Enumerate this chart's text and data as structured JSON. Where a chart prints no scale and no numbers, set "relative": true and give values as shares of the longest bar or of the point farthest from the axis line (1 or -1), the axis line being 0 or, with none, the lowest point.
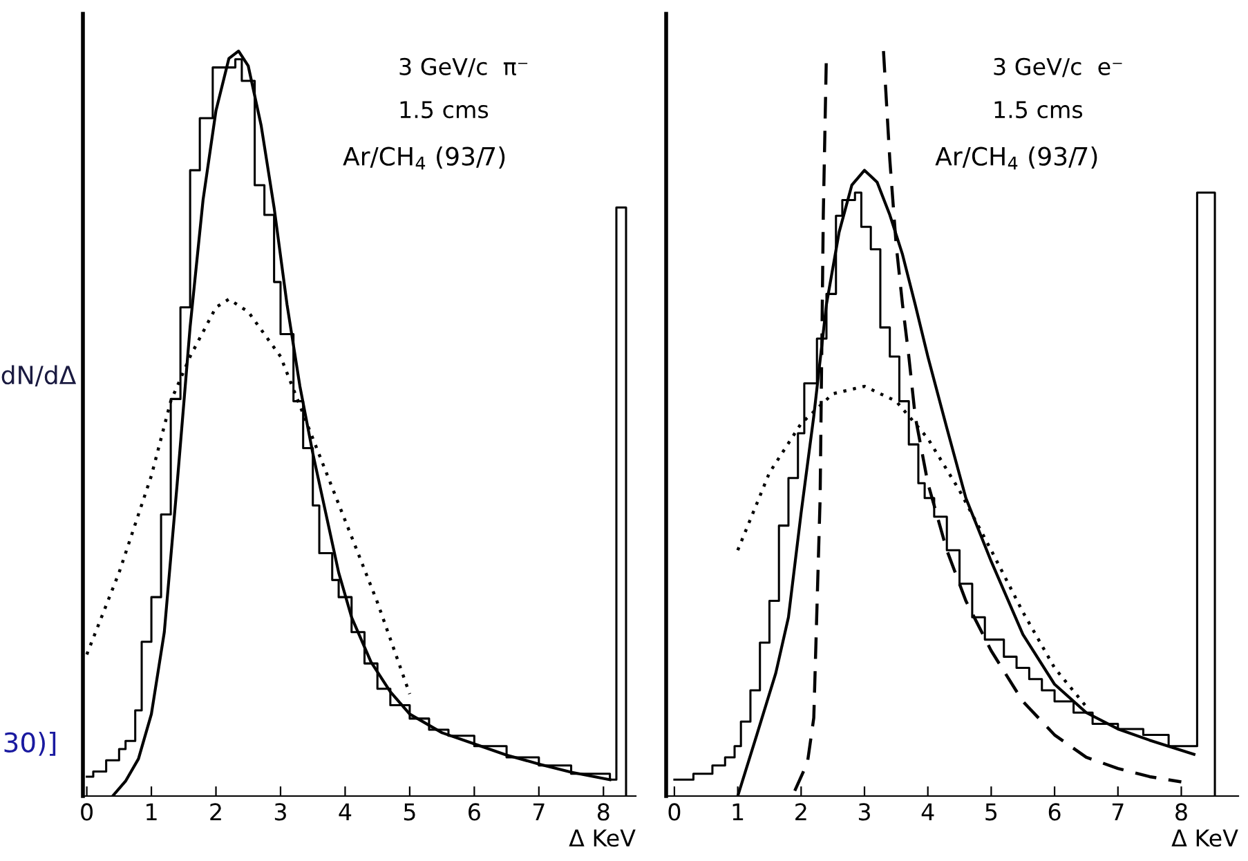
{
  "chart_data": [
    {
      "type": "line",
      "relative": true,
      "xlabel": "Δ KeV",
      "ylabel": "dN/dΔ",
      "xlim": [
        -0.06,
        8.5
      ],
      "xticks": [
        0,
        1,
        2,
        3,
        4,
        5,
        6,
        7,
        8
      ],
      "grid": false,
      "legend": false,
      "annotations": [
        "3 GeV/c  π⁻",
        "1.5 cms",
        "Ar/CH$_{4}$ (93/7)",
        "30)]"
      ],
      "series": [
        {
          "type": "step",
          "color": "#000000",
          "line_style": "solid",
          "x": [
            0,
            0.1,
            0.3,
            0.5,
            0.6,
            0.75,
            0.85,
            1.0,
            1.15,
            1.3,
            1.45,
            1.6,
            1.75,
            1.95,
            2.3,
            2.4,
            2.6,
            2.75,
            2.9,
            3.0,
            3.2,
            3.35,
            3.5,
            3.6,
            3.8,
            3.9,
            4.1,
            4.3,
            4.5,
            4.7,
            5.0,
            5.3,
            5.6,
            6.0,
            6.5,
            7.0,
            7.5,
            8.1,
            8.2,
            8.35
          ],
          "values": [
            0.026,
            0.033,
            0.048,
            0.063,
            0.074,
            0.115,
            0.207,
            0.267,
            0.378,
            0.533,
            0.656,
            0.84,
            0.91,
            0.978,
            0.989,
            0.96,
            0.82,
            0.78,
            0.69,
            0.62,
            0.53,
            0.467,
            0.39,
            0.326,
            0.29,
            0.267,
            0.22,
            0.178,
            0.144,
            0.122,
            0.104,
            0.089,
            0.081,
            0.067,
            0.052,
            0.041,
            0.03,
            0.022,
            0.79,
            0
          ]
        },
        {
          "color": "#000000",
          "line_style": "solid",
          "x": [
            0.4,
            0.6,
            0.8,
            1.0,
            1.2,
            1.4,
            1.6,
            1.8,
            2.0,
            2.2,
            2.35,
            2.5,
            2.7,
            2.9,
            3.1,
            3.3,
            3.5,
            3.7,
            3.9,
            4.1,
            4.4,
            4.7,
            5.0,
            5.5,
            6.0,
            6.5,
            7.0,
            7.5,
            8.1
          ],
          "values": [
            0,
            0.02,
            0.05,
            0.11,
            0.22,
            0.42,
            0.63,
            0.8,
            0.92,
            0.99,
            1.0,
            0.98,
            0.9,
            0.79,
            0.66,
            0.55,
            0.46,
            0.38,
            0.3,
            0.24,
            0.18,
            0.14,
            0.11,
            0.085,
            0.07,
            0.055,
            0.043,
            0.032,
            0.022
          ]
        },
        {
          "color": "#000000",
          "line_style": "dotted",
          "x": [
            0,
            0.5,
            1.0,
            1.3,
            1.6,
            2.0,
            2.2,
            2.5,
            3.0,
            3.5,
            4.0,
            4.5,
            5.0
          ],
          "values": [
            0.19,
            0.3,
            0.43,
            0.53,
            0.59,
            0.656,
            0.667,
            0.65,
            0.59,
            0.48,
            0.37,
            0.26,
            0.137
          ]
        }
      ]
    },
    {
      "type": "line",
      "relative": true,
      "xlabel": "Δ KeV",
      "xlim": [
        -0.13,
        8.9
      ],
      "xticks": [
        0,
        1,
        2,
        3,
        4,
        5,
        6,
        7,
        8
      ],
      "grid": false,
      "legend": false,
      "annotations": [
        "3 GeV/c  e⁻",
        "1.5 cms",
        "Ar/CH$_{4}$ (93/7)"
      ],
      "series": [
        {
          "type": "step",
          "color": "#000000",
          "line_style": "solid",
          "x": [
            0,
            0.3,
            0.6,
            0.8,
            0.95,
            1.05,
            1.2,
            1.35,
            1.5,
            1.65,
            1.8,
            1.95,
            2.05,
            2.25,
            2.4,
            2.55,
            2.65,
            2.85,
            2.95,
            3.1,
            3.25,
            3.4,
            3.55,
            3.7,
            3.85,
            3.95,
            4.1,
            4.3,
            4.5,
            4.7,
            4.9,
            5.2,
            5.4,
            5.6,
            5.8,
            6.0,
            6.3,
            6.6,
            7.0,
            7.4,
            7.8,
            8.25,
            8.53
          ],
          "values": [
            0.022,
            0.03,
            0.041,
            0.052,
            0.067,
            0.1,
            0.142,
            0.206,
            0.262,
            0.363,
            0.427,
            0.487,
            0.554,
            0.614,
            0.674,
            0.779,
            0.8,
            0.81,
            0.764,
            0.734,
            0.629,
            0.59,
            0.53,
            0.472,
            0.42,
            0.4,
            0.375,
            0.33,
            0.285,
            0.24,
            0.21,
            0.187,
            0.172,
            0.157,
            0.142,
            0.127,
            0.112,
            0.097,
            0.09,
            0.082,
            0.067,
            0.81,
            0
          ]
        },
        {
          "color": "#000000",
          "line_style": "solid",
          "x": [
            1.0,
            1.3,
            1.6,
            1.8,
            2.0,
            2.2,
            2.4,
            2.6,
            2.8,
            3.0,
            3.2,
            3.4,
            3.6,
            3.8,
            4.0,
            4.3,
            4.6,
            5.0,
            5.5,
            6.0,
            6.5,
            7.0,
            7.5,
            8.2
          ],
          "values": [
            0,
            0.082,
            0.165,
            0.24,
            0.38,
            0.51,
            0.66,
            0.757,
            0.82,
            0.84,
            0.824,
            0.78,
            0.727,
            0.66,
            0.59,
            0.494,
            0.4,
            0.315,
            0.217,
            0.15,
            0.112,
            0.09,
            0.075,
            0.056
          ]
        },
        {
          "color": "#000000",
          "line_style": "dotted",
          "x": [
            1.0,
            1.5,
            2.0,
            2.5,
            3.0,
            3.5,
            4.0,
            4.5,
            5.0,
            5.5,
            6.0,
            6.5
          ],
          "values": [
            0.33,
            0.434,
            0.5,
            0.54,
            0.55,
            0.53,
            0.48,
            0.41,
            0.33,
            0.247,
            0.172,
            0.12
          ]
        },
        {
          "color": "#000000",
          "line_style": "dashed",
          "x": [
            1.9,
            2.1,
            2.2,
            2.3,
            2.35,
            2.4,
            2.8,
            3.3,
            3.4,
            3.5,
            3.6,
            3.7,
            3.8,
            4.0,
            4.3,
            4.6,
            5.0,
            5.5,
            6.0,
            6.5,
            7.0,
            7.5,
            8.0
          ],
          "values": [
            0.007,
            0.045,
            0.105,
            0.4,
            0.78,
            1.0,
            null,
            1.0,
            0.854,
            0.74,
            0.66,
            0.59,
            0.51,
            0.42,
            0.33,
            0.262,
            0.195,
            0.127,
            0.082,
            0.052,
            0.037,
            0.026,
            0.019
          ]
        }
      ]
    }
  ]
}
